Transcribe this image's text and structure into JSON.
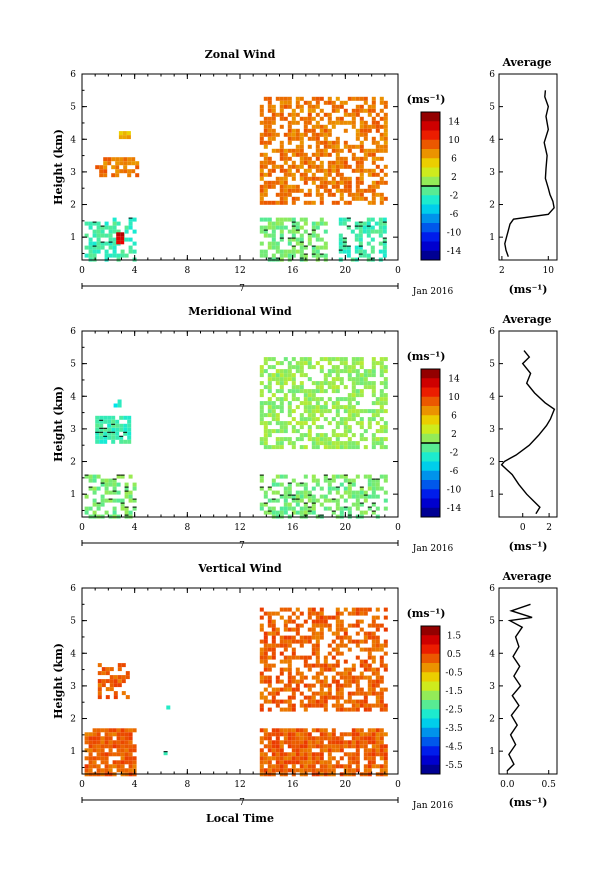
{
  "page": {
    "xlabel": "Local Time",
    "date_label": "Jan 2016",
    "day_label": "7",
    "colorbar_unit": "(ms⁻¹)",
    "avg_title": "Average",
    "avg_unit": "(ms⁻¹)"
  },
  "chart_data": [
    {
      "type": "heatmap",
      "title": "Zonal Wind",
      "ylabel": "Height (km)",
      "xlim": [
        0,
        24
      ],
      "ylim": [
        0.3,
        6
      ],
      "xticks": [
        "0",
        "4",
        "8",
        "12",
        "16",
        "20",
        "0"
      ],
      "yticks": [
        "1",
        "2",
        "3",
        "4",
        "5",
        "6"
      ],
      "colorbar": {
        "ticks": [
          "14",
          "10",
          "6",
          "2",
          "-2",
          "-6",
          "-10",
          "-14"
        ],
        "range": [
          -16,
          16
        ],
        "zero_line": 0
      },
      "typical_value": 8,
      "regions": [
        {
          "x": [
            0.2,
            4.0
          ],
          "y": [
            0.35,
            1.6
          ],
          "value": -2,
          "scatter": 0.55
        },
        {
          "x": [
            2.6,
            3.0
          ],
          "y": [
            0.9,
            1.15
          ],
          "value": 13,
          "scatter": 0.95
        },
        {
          "x": [
            1.0,
            4.1
          ],
          "y": [
            2.85,
            3.45
          ],
          "value": 8,
          "scatter": 0.7
        },
        {
          "x": [
            2.8,
            3.6
          ],
          "y": [
            4.1,
            4.25
          ],
          "value": 6,
          "scatter": 0.8
        },
        {
          "x": [
            13.5,
            23.0
          ],
          "y": [
            2.1,
            5.3
          ],
          "value": 8,
          "scatter": 0.6
        },
        {
          "x": [
            13.5,
            18.6
          ],
          "y": [
            0.35,
            1.6
          ],
          "value": 0,
          "scatter": 0.6
        },
        {
          "x": [
            19.5,
            23.0
          ],
          "y": [
            0.35,
            1.6
          ],
          "value": -2,
          "scatter": 0.6
        }
      ],
      "avg_profile": {
        "xlim": [
          1.5,
          11.5
        ],
        "xticks": [
          "2",
          "10"
        ],
        "height": [
          0.4,
          0.6,
          0.8,
          1.0,
          1.2,
          1.4,
          1.55,
          1.7,
          1.9,
          2.1,
          2.3,
          2.5,
          2.8,
          3.1,
          3.5,
          3.9,
          4.3,
          4.7,
          5.0,
          5.3,
          5.5
        ],
        "value": [
          3.1,
          2.7,
          2.5,
          2.8,
          3.1,
          3.4,
          4.0,
          10.0,
          11.0,
          10.8,
          10.3,
          10.0,
          9.5,
          9.6,
          9.8,
          9.3,
          10.0,
          9.6,
          10.0,
          9.4,
          9.5
        ]
      }
    },
    {
      "type": "heatmap",
      "title": "Meridional Wind",
      "ylabel": "Height (km)",
      "xlim": [
        0,
        24
      ],
      "ylim": [
        0.3,
        6
      ],
      "xticks": [
        "0",
        "4",
        "8",
        "12",
        "16",
        "20",
        "0"
      ],
      "yticks": [
        "1",
        "2",
        "3",
        "4",
        "5",
        "6"
      ],
      "colorbar": {
        "ticks": [
          "14",
          "10",
          "6",
          "2",
          "-2",
          "-6",
          "-10",
          "-14"
        ],
        "range": [
          -16,
          16
        ],
        "zero_line": 0
      },
      "typical_value": 1,
      "regions": [
        {
          "x": [
            0.2,
            4.0
          ],
          "y": [
            0.35,
            1.6
          ],
          "value": 0,
          "scatter": 0.6
        },
        {
          "x": [
            1.0,
            3.6
          ],
          "y": [
            2.6,
            3.4
          ],
          "value": -2,
          "scatter": 0.75
        },
        {
          "x": [
            2.4,
            2.8
          ],
          "y": [
            3.7,
            3.9
          ],
          "value": -3,
          "scatter": 0.8
        },
        {
          "x": [
            13.5,
            23.0
          ],
          "y": [
            2.5,
            5.2
          ],
          "value": 1,
          "scatter": 0.6
        },
        {
          "x": [
            13.5,
            23.0
          ],
          "y": [
            0.35,
            1.6
          ],
          "value": 0,
          "scatter": 0.5
        }
      ],
      "avg_profile": {
        "xlim": [
          -1.8,
          2.6
        ],
        "xticks": [
          "0",
          "2"
        ],
        "height": [
          0.4,
          0.6,
          0.8,
          1.0,
          1.3,
          1.6,
          1.9,
          2.0,
          2.2,
          2.5,
          2.8,
          3.1,
          3.3,
          3.5,
          3.6,
          3.8,
          4.1,
          4.4,
          4.7,
          5.0,
          5.2,
          5.4
        ],
        "value": [
          1.0,
          1.3,
          0.8,
          0.3,
          -0.3,
          -0.8,
          -1.6,
          -1.4,
          -0.5,
          0.5,
          1.2,
          1.8,
          2.1,
          2.3,
          2.4,
          1.7,
          0.9,
          0.3,
          0.6,
          0.0,
          0.5,
          0.1
        ]
      }
    },
    {
      "type": "heatmap",
      "title": "Vertical Wind",
      "ylabel": "Height (km)",
      "xlim": [
        0,
        24
      ],
      "ylim": [
        0.3,
        6
      ],
      "xticks": [
        "0",
        "4",
        "8",
        "12",
        "16",
        "20",
        "0"
      ],
      "yticks": [
        "1",
        "2",
        "3",
        "4",
        "5",
        "6"
      ],
      "colorbar": {
        "ticks": [
          "1.5",
          "0.5",
          "-0.5",
          "-1.5",
          "-2.5",
          "-3.5",
          "-4.5",
          "-5.5"
        ],
        "range": [
          -6,
          2
        ],
        "zero_line": null
      },
      "typical_value": 0.2,
      "regions": [
        {
          "x": [
            0.2,
            4.1
          ],
          "y": [
            0.35,
            1.7
          ],
          "value": 0.2,
          "scatter": 0.85
        },
        {
          "x": [
            1.2,
            3.6
          ],
          "y": [
            2.7,
            3.7
          ],
          "value": 0.2,
          "scatter": 0.6
        },
        {
          "x": [
            13.5,
            23.0
          ],
          "y": [
            0.35,
            1.7
          ],
          "value": 0.2,
          "scatter": 0.8
        },
        {
          "x": [
            13.5,
            23.0
          ],
          "y": [
            2.3,
            5.4
          ],
          "value": 0.2,
          "scatter": 0.55
        },
        {
          "x": [
            6.2,
            6.4
          ],
          "y": [
            0.9,
            1.0
          ],
          "value": -2.5,
          "scatter": 1.0
        },
        {
          "x": [
            6.4,
            6.6
          ],
          "y": [
            2.3,
            2.4
          ],
          "value": -2.5,
          "scatter": 1.0
        }
      ],
      "avg_profile": {
        "xlim": [
          -0.1,
          0.6
        ],
        "xticks": [
          "0.0",
          "0.5"
        ],
        "height": [
          0.4,
          0.6,
          0.9,
          1.2,
          1.5,
          1.8,
          2.1,
          2.4,
          2.7,
          3.0,
          3.3,
          3.6,
          3.9,
          4.2,
          4.5,
          4.8,
          5.0,
          5.1,
          5.3,
          5.5
        ],
        "value": [
          0.0,
          0.08,
          0.02,
          0.1,
          0.04,
          0.12,
          0.05,
          0.14,
          0.06,
          0.16,
          0.08,
          0.15,
          0.07,
          0.14,
          0.1,
          0.18,
          0.03,
          0.3,
          0.05,
          0.28
        ]
      }
    }
  ]
}
